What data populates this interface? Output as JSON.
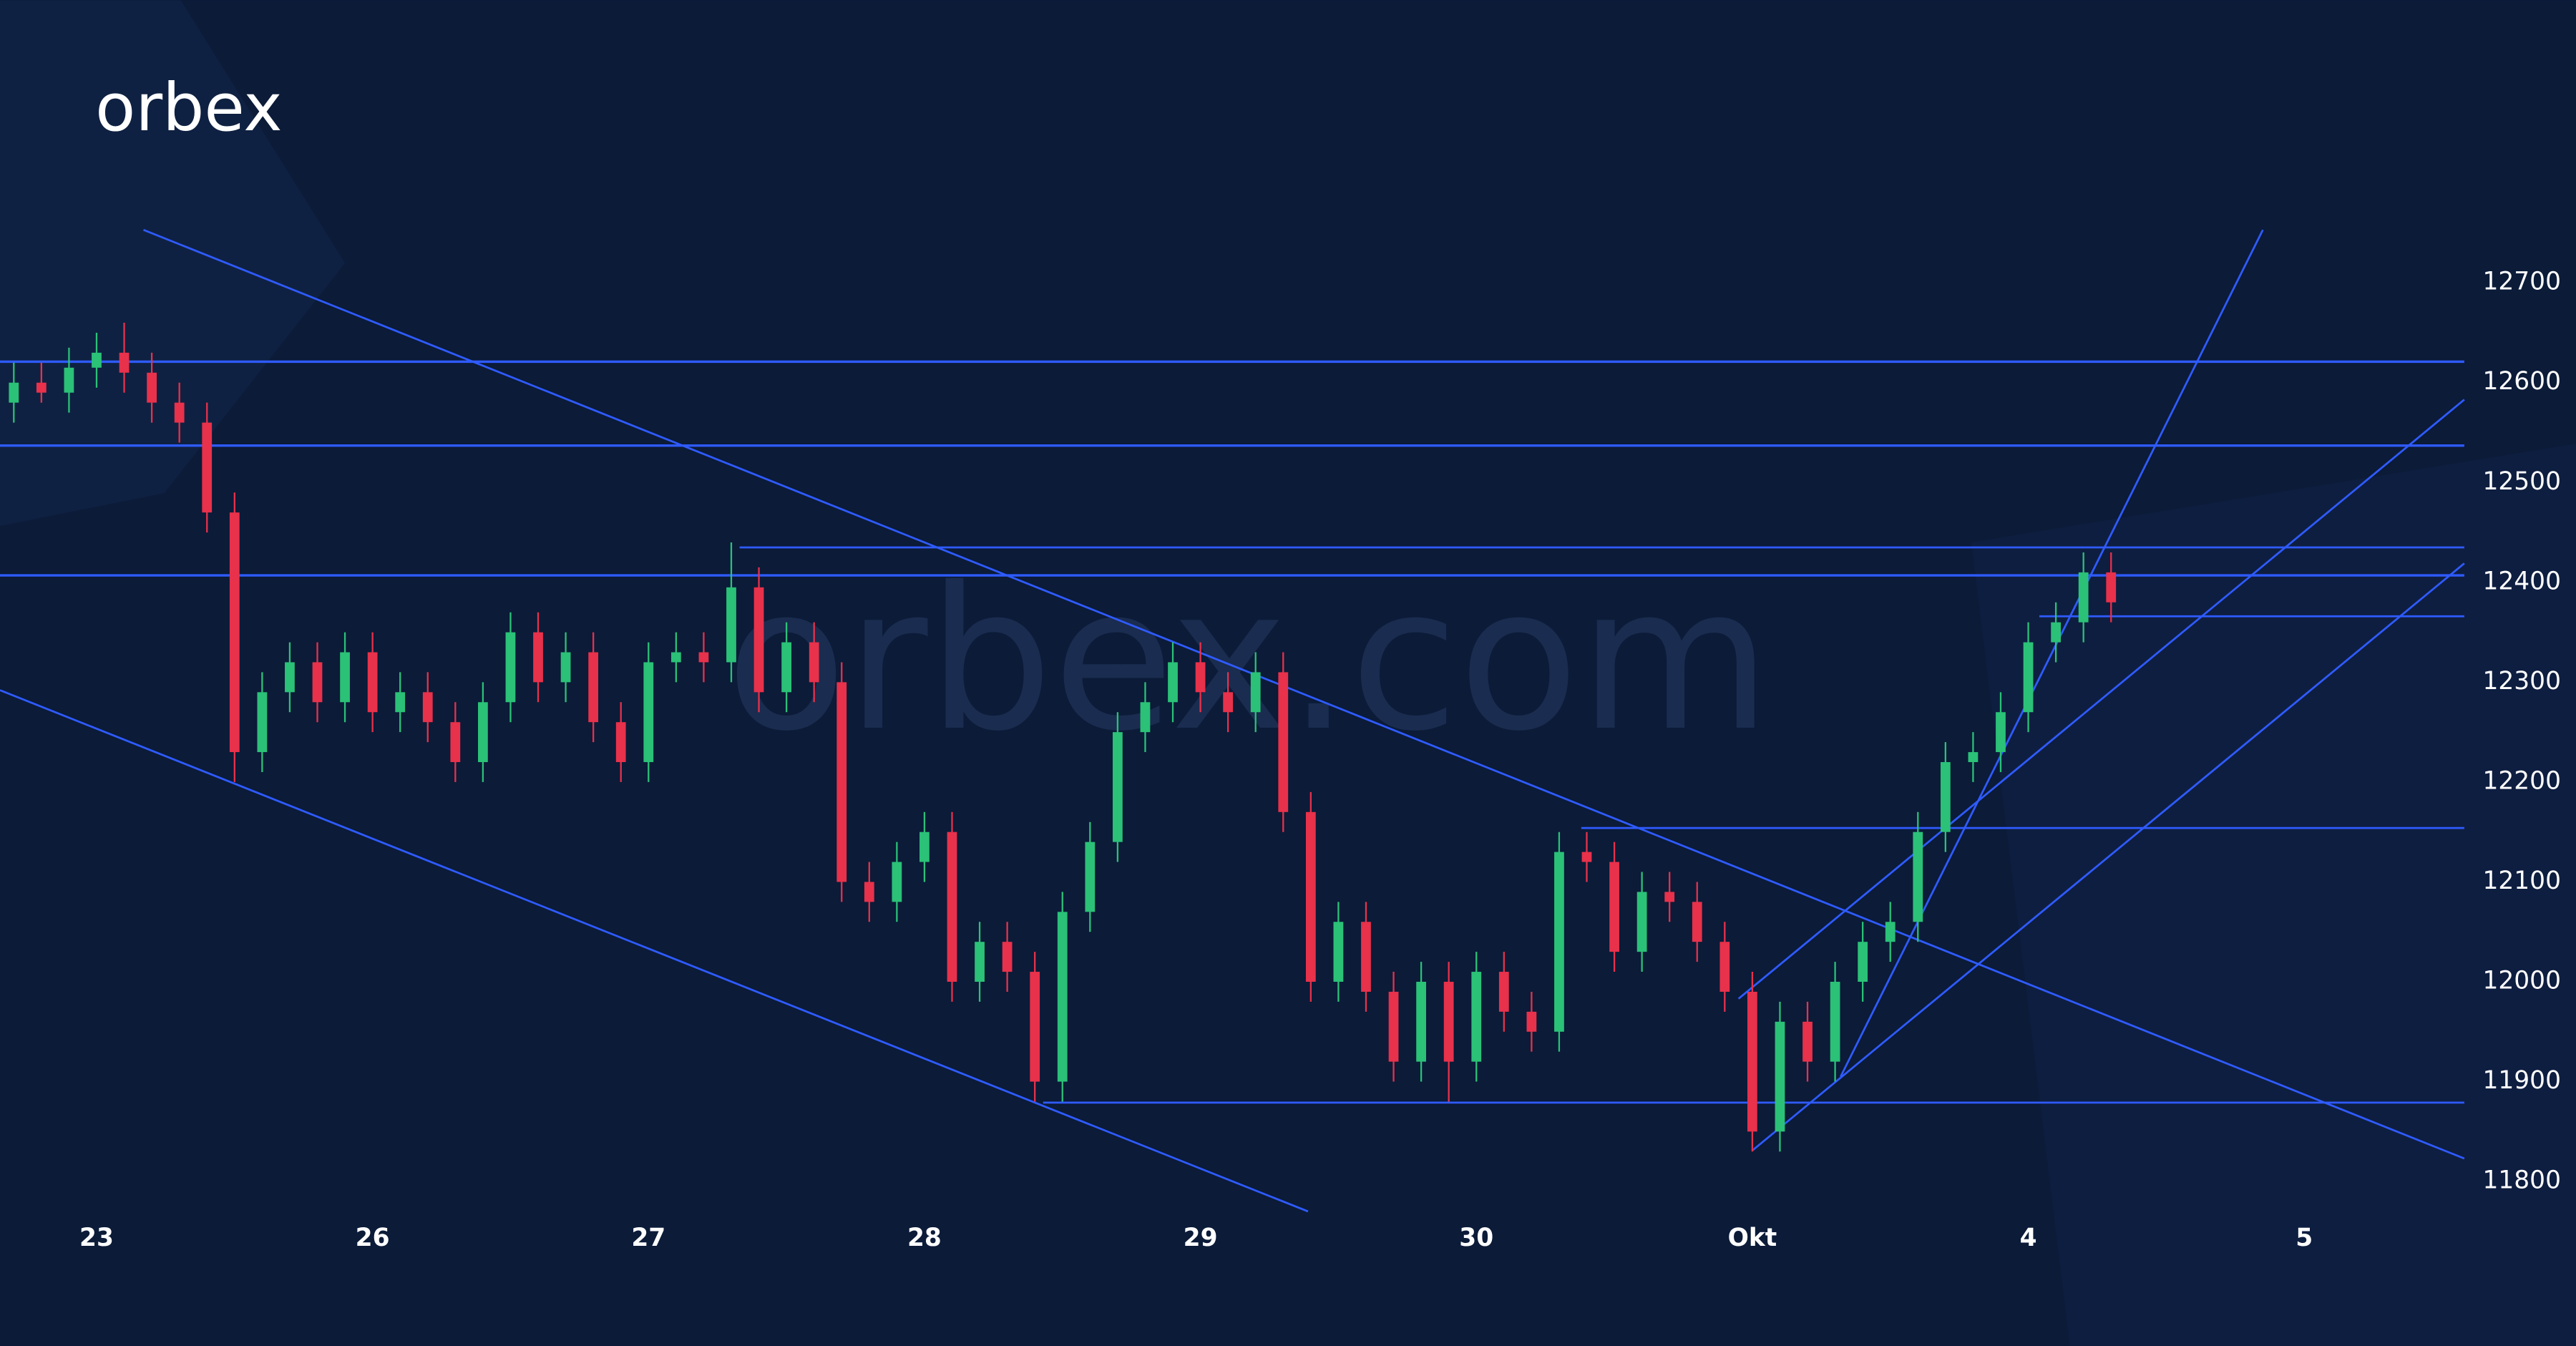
{
  "logo": "orbex",
  "watermark": "orbex.com",
  "chart_data": {
    "type": "candlestick",
    "xticks": [
      {
        "value": 0,
        "label": "23"
      },
      {
        "value": 1,
        "label": "26"
      },
      {
        "value": 2,
        "label": "27"
      },
      {
        "value": 3,
        "label": "28"
      },
      {
        "value": 4,
        "label": "29"
      },
      {
        "value": 5,
        "label": "30"
      },
      {
        "value": 6,
        "label": "Okt"
      },
      {
        "value": 7,
        "label": "4"
      },
      {
        "value": 8,
        "label": "5"
      }
    ],
    "xlim": [
      -0.35,
      8.58
    ],
    "ylim": [
      11750,
      12850
    ],
    "yticks": [
      11800,
      11900,
      12000,
      12100,
      12200,
      12300,
      12400,
      12500,
      12600,
      12700
    ],
    "up_color": "#2bc177",
    "down_color": "#e8314b",
    "line_color": "#2f5bff",
    "x": [
      -0.3,
      -0.2,
      -0.1,
      0,
      0.1,
      0.2,
      0.3,
      0.4,
      0.5,
      0.6,
      0.7,
      0.8,
      0.9,
      1,
      1.1,
      1.2,
      1.3,
      1.4,
      1.5,
      1.6,
      1.7,
      1.8,
      1.9,
      2,
      2.1,
      2.2,
      2.3,
      2.4,
      2.5,
      2.6,
      2.7,
      2.8,
      2.9,
      3,
      3.1,
      3.2,
      3.3,
      3.4,
      3.5,
      3.6,
      3.7,
      3.8,
      3.9,
      4,
      4.1,
      4.2,
      4.3,
      4.4,
      4.5,
      4.6,
      4.7,
      4.8,
      4.9,
      5,
      5.1,
      5.2,
      5.3,
      5.4,
      5.5,
      5.6,
      5.7,
      5.8,
      5.9,
      6,
      6.1,
      6.2,
      6.3,
      6.4,
      6.5,
      6.6,
      6.7,
      6.8,
      6.9,
      7,
      7.1,
      7.2,
      7.3
    ],
    "open": [
      12580,
      12600,
      12590,
      12615,
      12630,
      12610,
      12580,
      12560,
      12470,
      12230,
      12290,
      12320,
      12280,
      12330,
      12270,
      12290,
      12260,
      12220,
      12280,
      12350,
      12300,
      12330,
      12260,
      12220,
      12320,
      12330,
      12320,
      12395,
      12290,
      12340,
      12300,
      12100,
      12080,
      12120,
      12150,
      12000,
      12040,
      12010,
      11900,
      12070,
      12140,
      12250,
      12280,
      12320,
      12290,
      12270,
      12310,
      12170,
      12000,
      12060,
      11990,
      11920,
      12000,
      11920,
      12010,
      11970,
      11950,
      12130,
      12120,
      12030,
      12090,
      12080,
      12040,
      11990,
      11850,
      11960,
      11920,
      12000,
      12040,
      12060,
      12150,
      12220,
      12230,
      12270,
      12340,
      12360,
      12410
    ],
    "high": [
      12620,
      12620,
      12635,
      12650,
      12660,
      12630,
      12600,
      12580,
      12490,
      12310,
      12340,
      12340,
      12350,
      12350,
      12310,
      12310,
      12280,
      12300,
      12370,
      12370,
      12350,
      12350,
      12280,
      12340,
      12350,
      12350,
      12440,
      12415,
      12360,
      12360,
      12320,
      12120,
      12140,
      12170,
      12170,
      12060,
      12060,
      12030,
      12090,
      12160,
      12270,
      12300,
      12340,
      12340,
      12310,
      12330,
      12330,
      12190,
      12080,
      12080,
      12010,
      12020,
      12020,
      12030,
      12030,
      11990,
      12150,
      12150,
      12140,
      12110,
      12110,
      12100,
      12060,
      12010,
      11980,
      11980,
      12020,
      12060,
      12080,
      12170,
      12240,
      12250,
      12290,
      12360,
      12380,
      12430,
      12430
    ],
    "low": [
      12560,
      12580,
      12570,
      12595,
      12590,
      12560,
      12540,
      12450,
      12200,
      12210,
      12270,
      12260,
      12260,
      12250,
      12250,
      12240,
      12200,
      12200,
      12260,
      12280,
      12280,
      12240,
      12200,
      12200,
      12300,
      12300,
      12300,
      12270,
      12270,
      12280,
      12080,
      12060,
      12060,
      12100,
      11980,
      11980,
      11990,
      11880,
      11880,
      12050,
      12120,
      12230,
      12260,
      12270,
      12250,
      12250,
      12150,
      11980,
      11980,
      11970,
      11900,
      11900,
      11880,
      11900,
      11950,
      11930,
      11930,
      12100,
      12010,
      12010,
      12060,
      12020,
      11970,
      11830,
      11830,
      11900,
      11900,
      11980,
      12020,
      12040,
      12130,
      12200,
      12210,
      12250,
      12320,
      12340,
      12360
    ],
    "close": [
      12600,
      12590,
      12615,
      12630,
      12610,
      12580,
      12560,
      12470,
      12230,
      12290,
      12320,
      12280,
      12330,
      12270,
      12290,
      12260,
      12220,
      12280,
      12350,
      12300,
      12330,
      12260,
      12220,
      12320,
      12330,
      12320,
      12395,
      12290,
      12340,
      12300,
      12100,
      12080,
      12120,
      12150,
      12000,
      12040,
      12010,
      11900,
      12070,
      12140,
      12250,
      12280,
      12320,
      12290,
      12270,
      12310,
      12170,
      12000,
      12060,
      11990,
      11920,
      12000,
      11920,
      12010,
      11970,
      11950,
      12130,
      12120,
      12030,
      12090,
      12080,
      12040,
      11990,
      11850,
      11960,
      11920,
      12000,
      12040,
      12060,
      12150,
      12220,
      12230,
      12270,
      12340,
      12360,
      12410,
      12380
    ],
    "lines": [
      {
        "x": [
          -0.35,
          8.58
        ],
        "y": [
          12621,
          12621
        ]
      },
      {
        "x": [
          -0.35,
          8.58
        ],
        "y": [
          12537,
          12537
        ]
      },
      {
        "x": [
          -0.35,
          8.58
        ],
        "y": [
          12407,
          12407
        ]
      },
      {
        "x": [
          2.33,
          8.58
        ],
        "y": [
          12435,
          12435
        ]
      },
      {
        "x": [
          7.04,
          8.58
        ],
        "y": [
          12366,
          12366
        ]
      },
      {
        "x": [
          5.38,
          8.58
        ],
        "y": [
          12154,
          12154
        ]
      },
      {
        "x": [
          3.43,
          8.58
        ],
        "y": [
          11879,
          11879
        ]
      },
      {
        "x": [
          0.17,
          8.58
        ],
        "y": [
          12753,
          11823
        ]
      },
      {
        "x": [
          -0.35,
          4.39
        ],
        "y": [
          12292,
          11770
        ]
      },
      {
        "x": [
          6.0,
          8.58
        ],
        "y": [
          11831,
          12419
        ]
      },
      {
        "x": [
          5.95,
          8.58
        ],
        "y": [
          11983,
          12583
        ]
      },
      {
        "x": [
          6.32,
          7.85
        ],
        "y": [
          11905,
          12753
        ]
      }
    ]
  }
}
